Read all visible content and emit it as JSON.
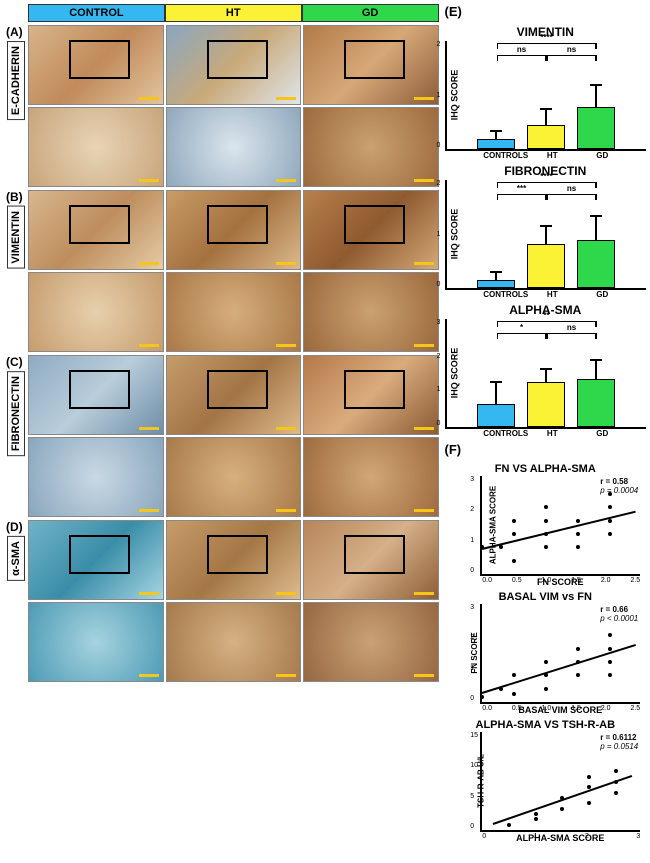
{
  "columns": {
    "labels": [
      "CONTROL",
      "HT",
      "GD"
    ],
    "bg_colors": [
      "#35b8f2",
      "#fcf235",
      "#2fd84a"
    ]
  },
  "left_panels": [
    {
      "letter": "(A)",
      "label": "E-CADHERIN",
      "rows": [
        [
          {
            "bg": "linear-gradient(135deg,#d7b48a,#c18a5a,#e2c49e)",
            "roi": true
          },
          {
            "bg": "linear-gradient(135deg,#8aa7c0,#c9a97a,#dfe5ea)",
            "roi": true
          },
          {
            "bg": "linear-gradient(135deg,#b37a49,#d6a878,#8e5d3a)",
            "roi": true
          }
        ],
        [
          {
            "bg": "radial-gradient(circle,#e8d4b5,#c8a57c)"
          },
          {
            "bg": "radial-gradient(circle,#dbe5ec,#8fa8bd)"
          },
          {
            "bg": "radial-gradient(circle,#caa171,#9c6a3d)"
          }
        ]
      ]
    },
    {
      "letter": "(B)",
      "label": "VIMENTIN",
      "rows": [
        [
          {
            "bg": "linear-gradient(135deg,#d9b78e,#bd8d5d,#e5cba4)",
            "roi": true
          },
          {
            "bg": "linear-gradient(135deg,#c89b67,#a4713f,#dbb98c)",
            "roi": true
          },
          {
            "bg": "linear-gradient(135deg,#b77f4b,#8f5a30,#d3a877)",
            "roi": true
          }
        ],
        [
          {
            "bg": "radial-gradient(circle,#e7d0ad,#c69c6d)"
          },
          {
            "bg": "radial-gradient(circle,#d6ae7b,#a97947)"
          },
          {
            "bg": "radial-gradient(circle,#cba172,#9a683c)"
          }
        ]
      ]
    },
    {
      "letter": "(C)",
      "label": "FIBRONECTIN",
      "rows": [
        [
          {
            "bg": "linear-gradient(135deg,#8fabc2,#b9cdda,#6e8ea8)",
            "roi": true
          },
          {
            "bg": "linear-gradient(135deg,#c69c6a,#a27446,#ddb98a)",
            "roi": true
          },
          {
            "bg": "linear-gradient(135deg,#b5794a,#d9ab7d,#8a5a33)",
            "roi": true
          }
        ],
        [
          {
            "bg": "radial-gradient(circle,#c9d9e4,#89a6bd)"
          },
          {
            "bg": "radial-gradient(circle,#d7b07e,#a87a4a)"
          },
          {
            "bg": "radial-gradient(circle,#d2a776,#9d6b3f)"
          }
        ]
      ]
    },
    {
      "letter": "(D)",
      "label": "α-SMA",
      "rows": [
        [
          {
            "bg": "linear-gradient(135deg,#6fb3c8,#3a8da8,#a5d4e1)",
            "roi": true
          },
          {
            "bg": "linear-gradient(135deg,#c79c6b,#a47745,#dcbb8e)",
            "roi": true
          },
          {
            "bg": "linear-gradient(135deg,#b8855a,#d5b088,#8e5e38)",
            "roi": true
          }
        ],
        [
          {
            "bg": "radial-gradient(circle,#a6d3df,#4d9bb5)"
          },
          {
            "bg": "radial-gradient(circle,#d6b183,#a57a4c)"
          },
          {
            "bg": "radial-gradient(circle,#caa276,#966741)"
          }
        ]
      ]
    }
  ],
  "barcharts_letter": "(E)",
  "barcharts": [
    {
      "title": "VIMENTIN",
      "ylabel": "IHQ SCORE",
      "ymax": 2,
      "yticks": [
        "0",
        "1",
        "2"
      ],
      "bars": [
        {
          "label": "CONTROLS",
          "value": 0.25,
          "err": 0.25,
          "color": "#35b8f2"
        },
        {
          "label": "HT",
          "value": 0.6,
          "err": 0.45,
          "color": "#fcf235"
        },
        {
          "label": "GD",
          "value": 1.05,
          "err": 0.6,
          "color": "#2fd84a"
        }
      ],
      "sig": [
        {
          "from": 0,
          "to": 1,
          "label": "ns",
          "level": 1
        },
        {
          "from": 1,
          "to": 2,
          "label": "ns",
          "level": 1
        },
        {
          "from": 0,
          "to": 2,
          "label": "****",
          "level": 2
        }
      ]
    },
    {
      "title": "FIBRONECTIN",
      "ylabel": "IHQ SCORE",
      "ymax": 2,
      "yticks": [
        "0",
        "1",
        "2"
      ],
      "bars": [
        {
          "label": "CONTROLS",
          "value": 0.2,
          "err": 0.25,
          "color": "#35b8f2"
        },
        {
          "label": "HT",
          "value": 1.1,
          "err": 0.5,
          "color": "#fcf235"
        },
        {
          "label": "GD",
          "value": 1.2,
          "err": 0.65,
          "color": "#2fd84a"
        }
      ],
      "sig": [
        {
          "from": 0,
          "to": 1,
          "label": "***",
          "level": 1
        },
        {
          "from": 1,
          "to": 2,
          "label": "ns",
          "level": 1
        },
        {
          "from": 0,
          "to": 2,
          "label": "****",
          "level": 2
        }
      ]
    },
    {
      "title": "ALPHA-SMA",
      "ylabel": "IHQ SCORE",
      "ymax": 3,
      "yticks": [
        "0",
        "1",
        "2",
        "3"
      ],
      "bars": [
        {
          "label": "CONTROLS",
          "value": 0.85,
          "err": 0.9,
          "color": "#35b8f2"
        },
        {
          "label": "HT",
          "value": 1.7,
          "err": 0.55,
          "color": "#fcf235"
        },
        {
          "label": "GD",
          "value": 1.8,
          "err": 0.8,
          "color": "#2fd84a"
        }
      ],
      "sig": [
        {
          "from": 0,
          "to": 1,
          "label": "*",
          "level": 1
        },
        {
          "from": 1,
          "to": 2,
          "label": "ns",
          "level": 1
        },
        {
          "from": 0,
          "to": 2,
          "label": "**",
          "level": 2
        }
      ]
    }
  ],
  "scatters_letter": "(F)",
  "scatters": [
    {
      "title": "FN VS ALPHA-SMA",
      "xlabel": "FN SCORE",
      "ylabel": "ALPHA-SMA SCORE",
      "r": "r = 0.58",
      "p": "p = 0.0004",
      "xlim": [
        0,
        2.5
      ],
      "xticks": [
        "0.0",
        "0.5",
        "1.0",
        "1.5",
        "2.0",
        "2.5"
      ],
      "ylim": [
        0,
        3
      ],
      "yticks": [
        "0",
        "1",
        "2",
        "3"
      ],
      "points": [
        [
          0,
          1
        ],
        [
          0.3,
          1
        ],
        [
          0.5,
          0.5
        ],
        [
          0.5,
          1.5
        ],
        [
          1.0,
          1.0
        ],
        [
          1.0,
          1.5
        ],
        [
          1.0,
          2.0
        ],
        [
          1.0,
          2.5
        ],
        [
          1.5,
          1.5
        ],
        [
          1.5,
          2.0
        ],
        [
          2.0,
          1.5
        ],
        [
          2.0,
          2.0
        ],
        [
          2.0,
          2.5
        ],
        [
          2.0,
          3.0
        ],
        [
          0.5,
          2.0
        ],
        [
          1.5,
          1.0
        ]
      ],
      "trend": {
        "x1": 0,
        "y1": 0.9,
        "x2": 2.4,
        "y2": 2.3
      }
    },
    {
      "title": "BASAL VIM vs FN",
      "xlabel": "BASAL VIM SCORE",
      "ylabel": "FN SCORE",
      "r": "r = 0.66",
      "p": "p < 0.0001",
      "xlim": [
        0,
        2.5
      ],
      "xticks": [
        "0.0",
        "0.5",
        "1.0",
        "1.5",
        "2.0",
        "2.5"
      ],
      "ylim": [
        0,
        3
      ],
      "yticks": [
        "0",
        "1",
        "2",
        "3"
      ],
      "points": [
        [
          0,
          0.2
        ],
        [
          0.3,
          0.5
        ],
        [
          0.5,
          0.3
        ],
        [
          0.5,
          1.0
        ],
        [
          1.0,
          1.0
        ],
        [
          1.0,
          1.5
        ],
        [
          1.5,
          1.5
        ],
        [
          1.5,
          2.0
        ],
        [
          2.0,
          1.5
        ],
        [
          2.0,
          2.0
        ],
        [
          2.0,
          2.5
        ],
        [
          1.0,
          0.5
        ],
        [
          1.5,
          1.0
        ],
        [
          2.0,
          1.0
        ]
      ],
      "trend": {
        "x1": 0,
        "y1": 0.3,
        "x2": 2.4,
        "y2": 2.1
      }
    },
    {
      "title": "ALPHA-SMA VS TSH-R-AB",
      "xlabel": "ALPHA-SMA SCORE",
      "ylabel": "TSH-R-AB U/L",
      "r": "r = 0.6112",
      "p": "p = 0.0514",
      "xlim": [
        0,
        3
      ],
      "xticks": [
        "0",
        "1",
        "2",
        "3"
      ],
      "ylim": [
        0,
        15
      ],
      "yticks": [
        "0",
        "5",
        "10",
        "15"
      ],
      "points": [
        [
          0.5,
          1
        ],
        [
          1.0,
          2
        ],
        [
          1.0,
          3
        ],
        [
          1.5,
          4
        ],
        [
          1.5,
          6
        ],
        [
          2.0,
          5
        ],
        [
          2.0,
          8
        ],
        [
          2.0,
          10
        ],
        [
          2.5,
          7
        ],
        [
          2.5,
          11
        ],
        [
          2.5,
          9
        ]
      ],
      "trend": {
        "x1": 0.2,
        "y1": 1,
        "x2": 2.8,
        "y2": 10
      }
    }
  ]
}
